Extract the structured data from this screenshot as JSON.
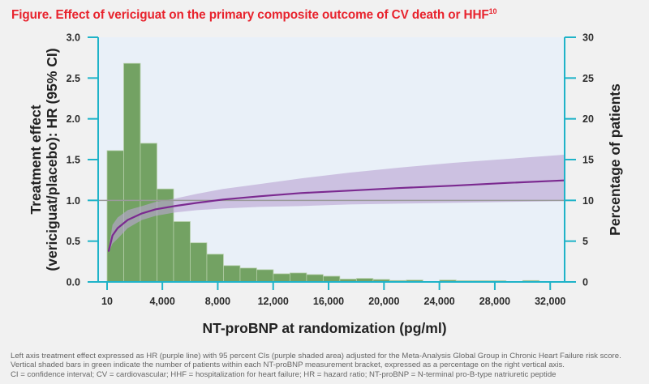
{
  "title": {
    "text": "Figure. Effect of vericiguat on the primary composite outcome of CV death or HHF",
    "superscript": "10"
  },
  "colors": {
    "title": "#e8232d",
    "axis": "#1fb3c8",
    "plot_background": "#e9f0f8",
    "bars": "#73a263",
    "hr_line": "#7b2a90",
    "ci_band": "#b9a5d3",
    "reference_line": "#9a9a9a"
  },
  "chart_data": {
    "type": "bar+line",
    "title": "Effect of vericiguat on the primary composite outcome of CV death or HHF",
    "xlabel": "NT-proBNP at randomization (pg/ml)",
    "ylabel_left": "Treatment effect (vericiguat/placebo): HR (95% CI)",
    "ylabel_left_lines": [
      "Treatment effect",
      "(vericiguat/placebo): HR (95% CI)"
    ],
    "ylabel_right": "Percentage of patients",
    "xlim": [
      10,
      33000
    ],
    "ylim_left": [
      0,
      3.0
    ],
    "ylim_right": [
      0,
      30
    ],
    "x_ticks": [
      10,
      4000,
      8000,
      12000,
      16000,
      20000,
      24000,
      28000,
      32000
    ],
    "x_tick_labels": [
      "10",
      "4,000",
      "8,000",
      "12,000",
      "16,000",
      "20,000",
      "24,000",
      "28,000",
      "32,000"
    ],
    "y_left_ticks": [
      0,
      0.5,
      1.0,
      1.5,
      2.0,
      2.5,
      3.0
    ],
    "y_left_tick_labels": [
      "0.0",
      "0.5",
      "1.0",
      "1.5",
      "2.0",
      "2.5",
      "3.0"
    ],
    "y_right_ticks": [
      0,
      5,
      10,
      15,
      20,
      25,
      30
    ],
    "y_right_tick_labels": [
      "0",
      "5",
      "10",
      "15",
      "20",
      "25",
      "30"
    ],
    "reference_line_hr": 1.0,
    "grid": false,
    "legend": "none",
    "histogram": {
      "name": "Percentage of patients within each NT-proBNP bracket",
      "axis": "right",
      "bin_start": 10,
      "bin_width": 1200,
      "values": [
        16.1,
        26.8,
        17.0,
        11.4,
        7.4,
        4.8,
        3.4,
        2.0,
        1.7,
        1.5,
        1.0,
        1.1,
        0.9,
        0.7,
        0.35,
        0.43,
        0.3,
        0.17,
        0.23,
        0.05,
        0.23,
        0.15,
        0.15,
        0.15,
        0.05,
        0.17
      ]
    },
    "hr_series": {
      "name": "HR (purple line)",
      "axis": "left",
      "x": [
        130,
        400,
        770,
        1500,
        2530,
        3500,
        4870,
        6500,
        8380,
        11000,
        14000,
        17500,
        20980,
        25000,
        29000,
        33000
      ],
      "hr": [
        0.38,
        0.57,
        0.66,
        0.76,
        0.84,
        0.89,
        0.93,
        0.97,
        1.01,
        1.05,
        1.09,
        1.12,
        1.15,
        1.18,
        1.215,
        1.245
      ],
      "ci_lower": [
        0.36,
        0.47,
        0.53,
        0.66,
        0.76,
        0.81,
        0.85,
        0.88,
        0.9,
        0.92,
        0.93,
        0.95,
        0.96,
        0.97,
        0.98,
        0.99
      ],
      "ci_upper": [
        0.41,
        0.7,
        0.79,
        0.88,
        0.93,
        0.98,
        1.02,
        1.08,
        1.14,
        1.2,
        1.27,
        1.34,
        1.4,
        1.46,
        1.51,
        1.56
      ]
    }
  },
  "footnotes": [
    "Left axis treatment effect expressed as HR (purple line) with 95 percent CIs (purple shaded area) adjusted for the Meta-Analysis Global Group in Chronic Heart Failure risk score.",
    "Vertical shaded bars in green indicate the number of patients within each NT-proBNP measurement bracket, expressed as a percentage on the right vertical axis.",
    "CI = confidence interval; CV = cardiovascular; HHF = hospitalization for heart failure; HR = hazard ratio; NT-proBNP = N-terminal pro-B-type natriuretic peptide"
  ]
}
